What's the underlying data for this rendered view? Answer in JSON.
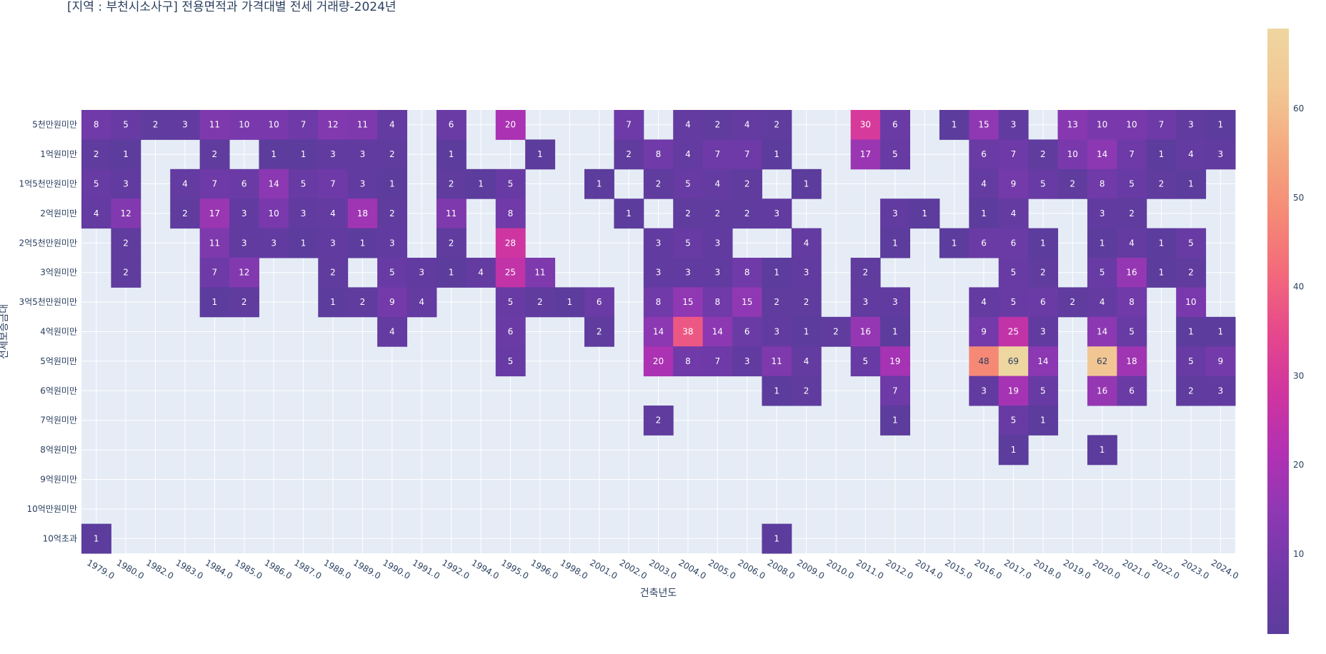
{
  "chart_data": {
    "type": "heatmap",
    "title": "[지역 : 부천시소사구] 전용면적과 가격대별 전세 거래량-2024년",
    "xlabel": "건축년도",
    "ylabel": "전세보증금대",
    "x": [
      "1979.0",
      "1980.0",
      "1982.0",
      "1983.0",
      "1984.0",
      "1985.0",
      "1986.0",
      "1987.0",
      "1988.0",
      "1989.0",
      "1990.0",
      "1991.0",
      "1992.0",
      "1994.0",
      "1995.0",
      "1996.0",
      "1998.0",
      "2001.0",
      "2002.0",
      "2003.0",
      "2004.0",
      "2005.0",
      "2006.0",
      "2008.0",
      "2009.0",
      "2010.0",
      "2011.0",
      "2012.0",
      "2014.0",
      "2015.0",
      "2016.0",
      "2017.0",
      "2018.0",
      "2019.0",
      "2020.0",
      "2021.0",
      "2022.0",
      "2023.0",
      "2024.0"
    ],
    "y": [
      "5천만원미만",
      "1억원미만",
      "1억5천만원미만",
      "2억원미만",
      "2억5천만원미만",
      "3억원미만",
      "3억5천만원미만",
      "4억원미만",
      "5억원미만",
      "6억원미만",
      "7억원미만",
      "8억원미만",
      "9억원미만",
      "10억만원미만",
      "10억초과"
    ],
    "z": [
      [
        8,
        5,
        2,
        3,
        11,
        10,
        10,
        7,
        12,
        11,
        4,
        null,
        6,
        null,
        20,
        null,
        null,
        null,
        7,
        null,
        4,
        2,
        4,
        2,
        null,
        null,
        30,
        6,
        null,
        1,
        15,
        3,
        null,
        13,
        10,
        10,
        7,
        3,
        1
      ],
      [
        2,
        1,
        null,
        null,
        2,
        null,
        1,
        1,
        3,
        3,
        2,
        null,
        1,
        null,
        null,
        1,
        null,
        null,
        2,
        8,
        4,
        7,
        7,
        1,
        null,
        null,
        17,
        5,
        null,
        null,
        6,
        7,
        2,
        10,
        14,
        7,
        1,
        4,
        3
      ],
      [
        5,
        3,
        null,
        4,
        7,
        6,
        14,
        5,
        7,
        3,
        1,
        null,
        2,
        1,
        5,
        null,
        null,
        1,
        null,
        2,
        5,
        4,
        2,
        null,
        1,
        null,
        null,
        null,
        null,
        null,
        4,
        9,
        5,
        2,
        8,
        5,
        2,
        1,
        null
      ],
      [
        4,
        12,
        null,
        2,
        17,
        3,
        10,
        3,
        4,
        18,
        2,
        null,
        11,
        null,
        8,
        null,
        null,
        null,
        1,
        null,
        2,
        2,
        2,
        3,
        null,
        null,
        null,
        3,
        1,
        null,
        1,
        4,
        null,
        null,
        3,
        2,
        null,
        null,
        null
      ],
      [
        null,
        2,
        null,
        null,
        11,
        3,
        3,
        1,
        3,
        1,
        3,
        null,
        2,
        null,
        28,
        null,
        null,
        null,
        null,
        3,
        5,
        3,
        null,
        null,
        4,
        null,
        null,
        1,
        null,
        1,
        6,
        6,
        1,
        null,
        1,
        4,
        1,
        5,
        null
      ],
      [
        null,
        2,
        null,
        null,
        7,
        12,
        null,
        null,
        2,
        null,
        5,
        3,
        1,
        4,
        25,
        11,
        null,
        null,
        null,
        3,
        3,
        3,
        8,
        1,
        3,
        null,
        2,
        null,
        null,
        null,
        null,
        5,
        2,
        null,
        5,
        16,
        1,
        2,
        null
      ],
      [
        null,
        null,
        null,
        null,
        1,
        2,
        null,
        null,
        1,
        2,
        9,
        4,
        null,
        null,
        5,
        2,
        1,
        6,
        null,
        8,
        15,
        8,
        15,
        2,
        2,
        null,
        3,
        3,
        null,
        null,
        4,
        5,
        6,
        2,
        4,
        8,
        null,
        10,
        null
      ],
      [
        null,
        null,
        null,
        null,
        null,
        null,
        null,
        null,
        null,
        null,
        4,
        null,
        null,
        null,
        6,
        null,
        null,
        2,
        null,
        14,
        38,
        14,
        6,
        3,
        1,
        2,
        16,
        1,
        null,
        null,
        9,
        25,
        3,
        null,
        14,
        5,
        null,
        1,
        1
      ],
      [
        null,
        null,
        null,
        null,
        null,
        null,
        null,
        null,
        null,
        null,
        null,
        null,
        null,
        null,
        5,
        null,
        null,
        null,
        null,
        20,
        8,
        7,
        3,
        11,
        4,
        null,
        5,
        19,
        null,
        null,
        48,
        69,
        14,
        null,
        62,
        18,
        null,
        5,
        9
      ],
      [
        null,
        null,
        null,
        null,
        null,
        null,
        null,
        null,
        null,
        null,
        null,
        null,
        null,
        null,
        null,
        null,
        null,
        null,
        null,
        null,
        null,
        null,
        null,
        1,
        2,
        null,
        null,
        7,
        null,
        null,
        3,
        19,
        5,
        null,
        16,
        6,
        null,
        2,
        3
      ],
      [
        null,
        null,
        null,
        null,
        null,
        null,
        null,
        null,
        null,
        null,
        null,
        null,
        null,
        null,
        null,
        null,
        null,
        null,
        null,
        2,
        null,
        null,
        null,
        null,
        null,
        null,
        null,
        1,
        null,
        null,
        null,
        5,
        1,
        null,
        null,
        null,
        null,
        null,
        null
      ],
      [
        null,
        null,
        null,
        null,
        null,
        null,
        null,
        null,
        null,
        null,
        null,
        null,
        null,
        null,
        null,
        null,
        null,
        null,
        null,
        null,
        null,
        null,
        null,
        null,
        null,
        null,
        null,
        null,
        null,
        null,
        null,
        1,
        null,
        null,
        1,
        null,
        null,
        null,
        null
      ],
      [
        null,
        null,
        null,
        null,
        null,
        null,
        null,
        null,
        null,
        null,
        null,
        null,
        null,
        null,
        null,
        null,
        null,
        null,
        null,
        null,
        null,
        null,
        null,
        null,
        null,
        null,
        null,
        null,
        null,
        null,
        null,
        null,
        null,
        null,
        null,
        null,
        null,
        null,
        null
      ],
      [
        null,
        null,
        null,
        null,
        null,
        null,
        null,
        null,
        null,
        null,
        null,
        null,
        null,
        null,
        null,
        null,
        null,
        null,
        null,
        null,
        null,
        null,
        null,
        null,
        null,
        null,
        null,
        null,
        null,
        null,
        null,
        null,
        null,
        null,
        null,
        null,
        null,
        null,
        null
      ],
      [
        1,
        null,
        null,
        null,
        null,
        null,
        null,
        null,
        null,
        null,
        null,
        null,
        null,
        null,
        null,
        null,
        null,
        null,
        null,
        null,
        null,
        null,
        null,
        1,
        null,
        null,
        null,
        null,
        null,
        null,
        null,
        null,
        null,
        null,
        null,
        null,
        null,
        null,
        null
      ]
    ],
    "zrange": [
      1,
      69
    ],
    "colorscale": [
      "#5c3c9c",
      "#6f3aa8",
      "#8e38b3",
      "#b231b3",
      "#d0359f",
      "#e6498b",
      "#f36b7a",
      "#f58c76",
      "#f4aa80",
      "#f2c794",
      "#eed6a0"
    ],
    "colorbar_ticks": [
      10,
      20,
      30,
      40,
      50,
      60
    ],
    "plot_background": "#e5ecf6",
    "grid": true
  }
}
